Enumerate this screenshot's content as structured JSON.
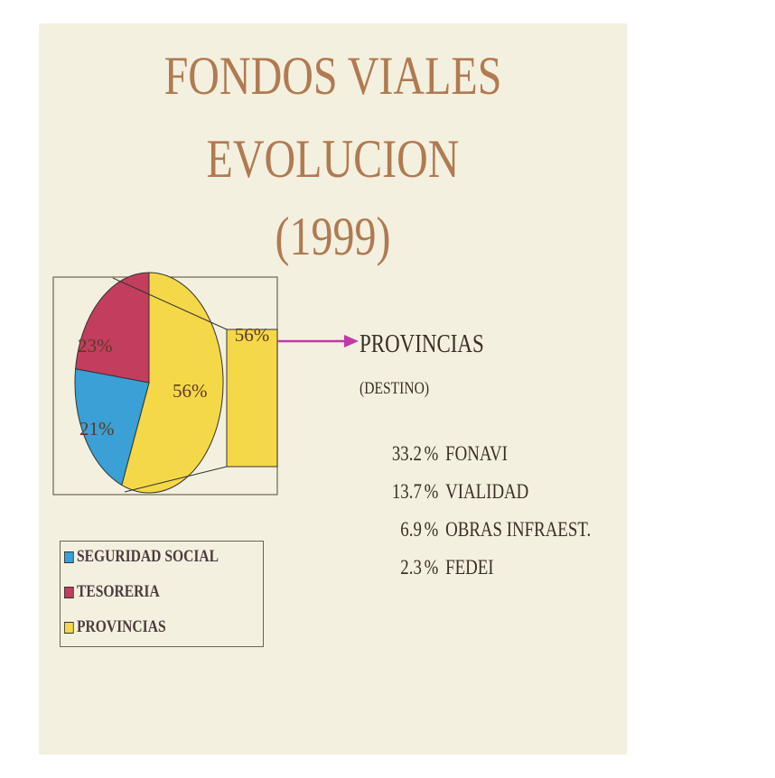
{
  "title": {
    "line1": "FONDOS VIALES",
    "line2": "EVOLUCION",
    "line3": "(1999)"
  },
  "chart_data": {
    "type": "pie",
    "labels": [
      "SEGURIDAD SOCIAL",
      "TESORERIA",
      "PROVINCIAS"
    ],
    "values": [
      21,
      23,
      56
    ],
    "value_labels": [
      "21%",
      "23%",
      "56%"
    ],
    "colors": [
      "#3aa0d6",
      "#c23d5e",
      "#f5d848"
    ],
    "exploded": {
      "label": "56%",
      "color": "#f5d848"
    },
    "legend": "bottom-left"
  },
  "destination": {
    "title": "PROVINCIAS",
    "subtitle": "(DESTINO)",
    "items": [
      {
        "value": "33.2",
        "unit": "%",
        "name": "FONAVI"
      },
      {
        "value": "13.7",
        "unit": "%",
        "name": "VIALIDAD"
      },
      {
        "value": "6.9",
        "unit": "%",
        "name": "OBRAS INFRAEST."
      },
      {
        "value": "2.3",
        "unit": "%",
        "name": "FEDEI"
      }
    ]
  },
  "colors": {
    "title": "#b07a52",
    "arrow": "#c03aa8",
    "background": "#f4f0df"
  }
}
